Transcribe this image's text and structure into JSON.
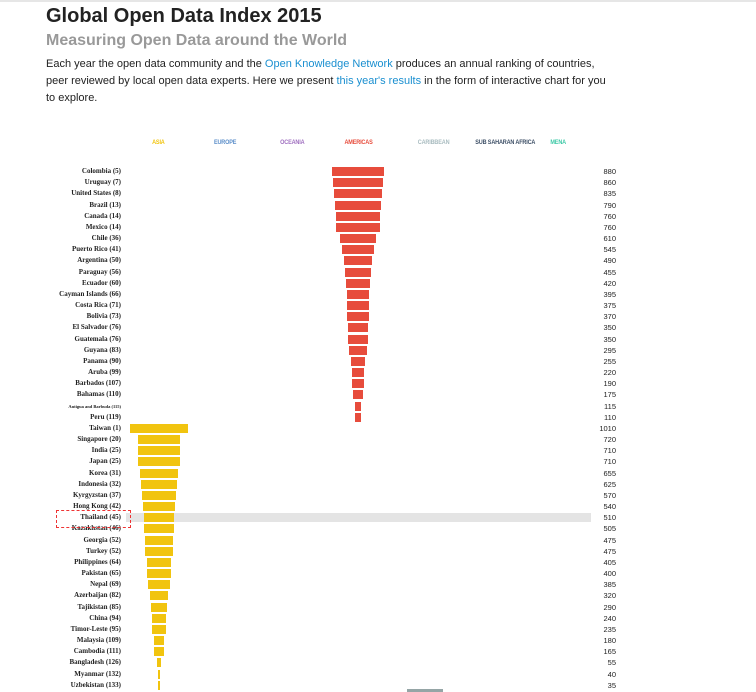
{
  "header": {
    "title": "Global Open Data Index 2015",
    "subtitle": "Measuring Open Data around the World",
    "intro_part1": "Each year the open data community and the ",
    "intro_link1": "Open Knowledge Network",
    "intro_part2": " produces an annual ranking of countries, peer reviewed by local open data experts. Here we present ",
    "intro_link2": "this year's results",
    "intro_part3": " in the form of interactive chart for you to explore."
  },
  "legend": [
    {
      "label": "ASIA",
      "color": "#f1c40f"
    },
    {
      "label": "EUROPE",
      "color": "#5b8ec9"
    },
    {
      "label": "OCEANIA",
      "color": "#a070c0"
    },
    {
      "label": "AMERICAS",
      "color": "#e74c3c"
    },
    {
      "label": "CARIBBEAN",
      "color": "#a9bcc0"
    },
    {
      "label": "SUB SAHARAN AFRICA",
      "color": "#3d4f66"
    },
    {
      "label": "MENA",
      "color": "#3ec9a7"
    }
  ],
  "highlighted_country": "Thailand (45)",
  "chart_data": {
    "type": "bar",
    "orientation": "horizontal-centered",
    "series": [
      {
        "name": "AMERICAS",
        "color": "#e74c3c",
        "categories": [
          "Colombia (5)",
          "Uruguay (7)",
          "United States (8)",
          "Brazil (13)",
          "Canada (14)",
          "Mexico (14)",
          "Chile (36)",
          "Puerto Rico (41)",
          "Argentina (50)",
          "Paraguay (56)",
          "Ecuador (60)",
          "Cayman Islands (66)",
          "Costa Rica (71)",
          "Bolivia (73)",
          "El Salvador (76)",
          "Guatemala (76)",
          "Guyana (83)",
          "Panama (90)",
          "Aruba (99)",
          "Barbados (107)",
          "Bahamas (110)",
          "Antigua and Barbuda (115)",
          "Peru (119)"
        ],
        "values": [
          880,
          860,
          835,
          790,
          760,
          760,
          610,
          545,
          490,
          455,
          420,
          395,
          375,
          370,
          350,
          350,
          295,
          255,
          220,
          190,
          175,
          115,
          110
        ]
      },
      {
        "name": "ASIA",
        "color": "#f1c40f",
        "categories": [
          "Taiwan (1)",
          "Singapore (20)",
          "India (25)",
          "Japan (25)",
          "Korea (31)",
          "Indonesia (32)",
          "Kyrgyzstan (37)",
          "Hong Kong (42)",
          "Thailand (45)",
          "Kazakhstan (46)",
          "Georgia (52)",
          "Turkey (52)",
          "Philippines (64)",
          "Pakistan (65)",
          "Nepal (69)",
          "Azerbaijan (82)",
          "Tajikistan (85)",
          "China (94)",
          "Timor-Leste (95)",
          "Malaysia (109)",
          "Cambodia (111)",
          "Bangladesh (126)",
          "Myanmar (132)",
          "Uzbekistan (133)"
        ],
        "values": [
          1010,
          720,
          710,
          710,
          655,
          625,
          570,
          540,
          510,
          505,
          475,
          475,
          405,
          400,
          385,
          320,
          290,
          240,
          235,
          180,
          165,
          55,
          40,
          35
        ]
      }
    ]
  }
}
